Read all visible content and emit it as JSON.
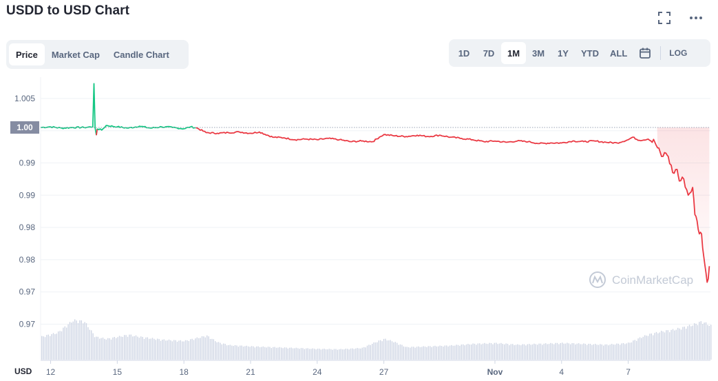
{
  "header": {
    "title": "USDD to USD Chart",
    "icons": [
      "fullscreen-icon",
      "more-icon"
    ]
  },
  "view_tabs": [
    {
      "label": "Price",
      "active": true
    },
    {
      "label": "Market Cap",
      "active": false
    },
    {
      "label": "Candle Chart",
      "active": false
    }
  ],
  "range_tabs": [
    {
      "label": "1D",
      "active": false
    },
    {
      "label": "7D",
      "active": false
    },
    {
      "label": "1M",
      "active": true
    },
    {
      "label": "3M",
      "active": false
    },
    {
      "label": "1Y",
      "active": false
    },
    {
      "label": "YTD",
      "active": false
    },
    {
      "label": "ALL",
      "active": false
    }
  ],
  "range_log_label": "LOG",
  "watermark": "CoinMarketCap",
  "colors": {
    "up": "#16c784",
    "down": "#ea3943",
    "volume": "#cfd6e4",
    "grid": "#eff2f5",
    "current_label_bg": "#858ca2"
  },
  "chart_data": {
    "type": "line",
    "title": "USDD to USD Chart",
    "currency_label": "USD",
    "ylim": [
      0.9645,
      1.0083
    ],
    "y_ticks": [
      {
        "value": 1.005,
        "label": "1.005"
      },
      {
        "value": 1.0,
        "label": "1.00"
      },
      {
        "value": 0.995,
        "label": "0.99"
      },
      {
        "value": 0.99,
        "label": "0.99"
      },
      {
        "value": 0.985,
        "label": "0.98"
      },
      {
        "value": 0.98,
        "label": "0.98"
      },
      {
        "value": 0.975,
        "label": "0.97"
      },
      {
        "value": 0.97,
        "label": "0.97"
      }
    ],
    "x_ticks": [
      {
        "day": 1,
        "label": "12"
      },
      {
        "day": 4,
        "label": "15"
      },
      {
        "day": 7,
        "label": "18"
      },
      {
        "day": 10,
        "label": "21"
      },
      {
        "day": 13,
        "label": "24"
      },
      {
        "day": 16,
        "label": "27"
      },
      {
        "day": 21,
        "label": "Nov",
        "bold": true
      },
      {
        "day": 24,
        "label": "4"
      },
      {
        "day": 27,
        "label": "7"
      }
    ],
    "xlim": [
      0.55,
      30.7
    ],
    "reference_price": 1.0005,
    "current_price_label": "1.00",
    "series": [
      {
        "points": [
          [
            0.55,
            1.0005
          ],
          [
            1.0,
            1.0006
          ],
          [
            1.5,
            1.0004
          ],
          [
            2.0,
            1.0005
          ],
          [
            2.5,
            1.0005
          ],
          [
            2.9,
            1.0006
          ],
          [
            2.95,
            1.0073
          ],
          [
            3.0,
            1.0005
          ],
          [
            3.06,
            0.9993
          ],
          [
            3.1,
            1.0003
          ],
          [
            3.3,
            1.0001
          ],
          [
            3.5,
            1.0008
          ],
          [
            4.0,
            1.0006
          ],
          [
            4.5,
            1.0004
          ],
          [
            5.0,
            1.0007
          ],
          [
            5.5,
            1.0004
          ],
          [
            6.0,
            1.0006
          ],
          [
            6.5,
            1.0005
          ],
          [
            7.0,
            1.0003
          ],
          [
            7.3,
            1.0006
          ],
          [
            7.6,
            1.0004
          ],
          [
            8.0,
            0.9997
          ],
          [
            8.5,
            0.9996
          ],
          [
            9.0,
            0.9997
          ],
          [
            9.5,
            0.9998
          ],
          [
            10.0,
            0.9996
          ],
          [
            10.4,
            0.9998
          ],
          [
            11.0,
            0.999
          ],
          [
            11.5,
            0.9989
          ],
          [
            12.0,
            0.9986
          ],
          [
            12.5,
            0.9987
          ],
          [
            13.0,
            0.9986
          ],
          [
            13.5,
            0.9988
          ],
          [
            14.0,
            0.9986
          ],
          [
            14.5,
            0.9983
          ],
          [
            15.0,
            0.9984
          ],
          [
            15.5,
            0.9983
          ],
          [
            15.8,
            0.999
          ],
          [
            16.0,
            0.9994
          ],
          [
            16.5,
            0.9992
          ],
          [
            17.0,
            0.9991
          ],
          [
            17.5,
            0.9993
          ],
          [
            18.0,
            0.9991
          ],
          [
            18.5,
            0.9993
          ],
          [
            19.0,
            0.999
          ],
          [
            19.5,
            0.9988
          ],
          [
            20.0,
            0.9986
          ],
          [
            20.5,
            0.9983
          ],
          [
            21.0,
            0.9984
          ],
          [
            21.5,
            0.9982
          ],
          [
            22.0,
            0.9984
          ],
          [
            22.5,
            0.9983
          ],
          [
            23.0,
            0.998
          ],
          [
            23.5,
            0.9981
          ],
          [
            24.0,
            0.9981
          ],
          [
            24.5,
            0.9984
          ],
          [
            25.0,
            0.9983
          ],
          [
            25.5,
            0.9984
          ],
          [
            26.0,
            0.9982
          ],
          [
            26.5,
            0.9981
          ],
          [
            27.0,
            0.9986
          ],
          [
            27.2,
            0.999
          ],
          [
            27.5,
            0.9985
          ],
          [
            27.9,
            0.9987
          ],
          [
            28.2,
            0.9982
          ],
          [
            28.5,
            0.996
          ],
          [
            28.7,
            0.9965
          ],
          [
            28.8,
            0.996
          ],
          [
            29.0,
            0.9935
          ],
          [
            29.2,
            0.994
          ],
          [
            29.3,
            0.9922
          ],
          [
            29.5,
            0.9925
          ],
          [
            29.7,
            0.99
          ],
          [
            29.9,
            0.9912
          ],
          [
            30.0,
            0.987
          ],
          [
            30.1,
            0.986
          ],
          [
            30.2,
            0.984
          ],
          [
            30.3,
            0.984
          ],
          [
            30.4,
            0.9805
          ],
          [
            30.5,
            0.978
          ],
          [
            30.55,
            0.9765
          ],
          [
            30.6,
            0.977
          ],
          [
            30.65,
            0.979
          ]
        ]
      }
    ],
    "volume": {
      "unit": "relative (0-1)",
      "points": [
        [
          0.55,
          0.55
        ],
        [
          1.3,
          0.65
        ],
        [
          2.0,
          0.95
        ],
        [
          2.5,
          0.92
        ],
        [
          3.0,
          0.55
        ],
        [
          3.5,
          0.5
        ],
        [
          4.0,
          0.55
        ],
        [
          4.5,
          0.6
        ],
        [
          5.0,
          0.55
        ],
        [
          6.0,
          0.48
        ],
        [
          7.0,
          0.45
        ],
        [
          7.8,
          0.55
        ],
        [
          8.0,
          0.58
        ],
        [
          8.5,
          0.42
        ],
        [
          9.0,
          0.35
        ],
        [
          10.0,
          0.32
        ],
        [
          11.0,
          0.3
        ],
        [
          12.0,
          0.28
        ],
        [
          13.0,
          0.26
        ],
        [
          14.0,
          0.25
        ],
        [
          15.0,
          0.28
        ],
        [
          15.6,
          0.42
        ],
        [
          16.0,
          0.5
        ],
        [
          16.4,
          0.44
        ],
        [
          17.0,
          0.3
        ],
        [
          18.0,
          0.32
        ],
        [
          19.0,
          0.34
        ],
        [
          20.0,
          0.38
        ],
        [
          21.0,
          0.4
        ],
        [
          22.0,
          0.36
        ],
        [
          23.0,
          0.38
        ],
        [
          24.0,
          0.4
        ],
        [
          25.0,
          0.38
        ],
        [
          26.0,
          0.36
        ],
        [
          27.0,
          0.4
        ],
        [
          27.6,
          0.55
        ],
        [
          28.0,
          0.62
        ],
        [
          28.5,
          0.68
        ],
        [
          29.0,
          0.72
        ],
        [
          29.5,
          0.78
        ],
        [
          30.0,
          0.86
        ],
        [
          30.3,
          0.92
        ],
        [
          30.7,
          0.82
        ]
      ]
    },
    "volume_area": "bottom band of chart",
    "grid": true,
    "reference_line": "dotted"
  }
}
